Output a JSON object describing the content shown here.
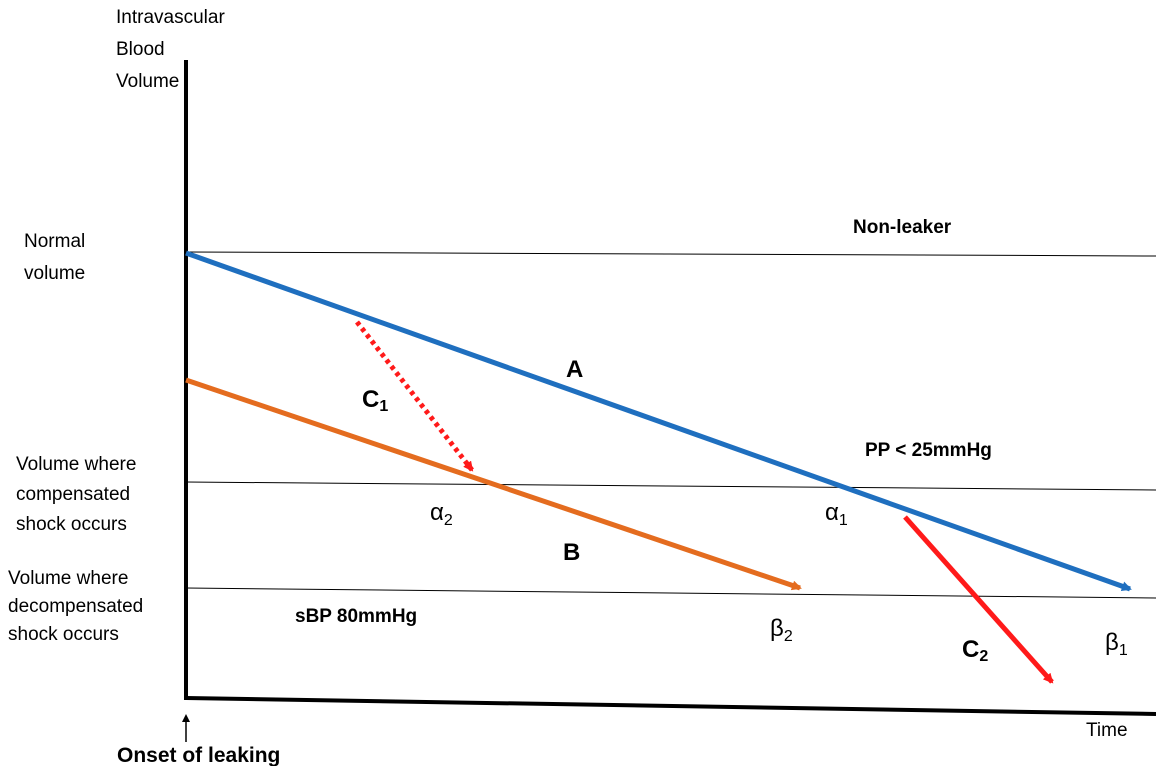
{
  "axes": {
    "y_label": [
      "Intravascular",
      "Blood",
      "Volume"
    ],
    "x_label": "Time",
    "onset_label": "Onset of leaking"
  },
  "levels": {
    "normal": {
      "label": [
        "Normal",
        "volume"
      ],
      "note": "Non-leaker"
    },
    "compensated": {
      "label": [
        "Volume where",
        "compensated",
        "shock occurs"
      ],
      "note": "PP < 25mmHg"
    },
    "decompensated": {
      "label": [
        "Volume where",
        "decompensated",
        "shock occurs"
      ],
      "note": "sBP 80mmHg"
    }
  },
  "curves": {
    "A": {
      "letter": "A",
      "color": "#1f6fbf"
    },
    "B": {
      "letter": "B",
      "color": "#e46c1f"
    },
    "C1": {
      "letter": "C",
      "subscript": "1",
      "color": "#ff1a1a",
      "style": "dotted"
    },
    "C2": {
      "letter": "C",
      "subscript": "2",
      "color": "#ff1a1a",
      "style": "solid"
    }
  },
  "points": {
    "alpha1": {
      "symbol": "α",
      "subscript": "1"
    },
    "alpha2": {
      "symbol": "α",
      "subscript": "2"
    },
    "beta1": {
      "symbol": "β",
      "subscript": "1"
    },
    "beta2": {
      "symbol": "β",
      "subscript": "2"
    }
  },
  "colors": {
    "axis": "#000000",
    "level_line": "#000000"
  }
}
